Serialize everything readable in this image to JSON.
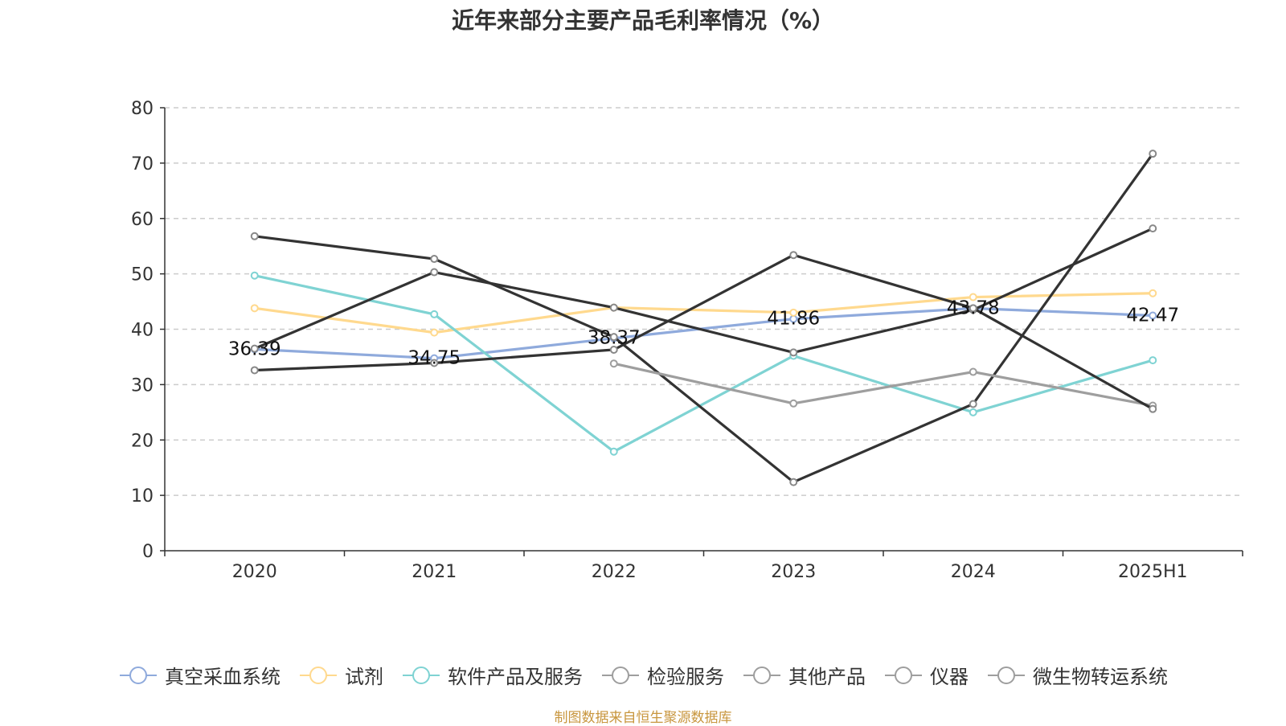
{
  "chart_data": {
    "type": "line",
    "title": "近年来部分主要产品毛利率情况（%）",
    "xlabel": "",
    "ylabel": "",
    "categories": [
      "2020",
      "2021",
      "2022",
      "2023",
      "2024",
      "2025H1"
    ],
    "ylim": [
      0,
      80
    ],
    "yticks": [
      0,
      10,
      20,
      30,
      40,
      50,
      60,
      70,
      80
    ],
    "grid": true,
    "legend_position": "bottom",
    "series": [
      {
        "name": "真空采血系统",
        "color": "#8faadc",
        "values": [
          36.39,
          34.75,
          38.37,
          41.86,
          43.78,
          42.47
        ],
        "labels": [
          "36.39",
          "34.75",
          "38.37",
          "41.86",
          "43.78",
          "42.47"
        ]
      },
      {
        "name": "试剂",
        "color": "#ffd98e",
        "values": [
          43.8,
          39.4,
          43.9,
          43.0,
          45.8,
          46.5
        ]
      },
      {
        "name": "软件产品及服务",
        "color": "#7fd3d3",
        "values": [
          49.7,
          42.7,
          17.9,
          35.2,
          25.0,
          34.4
        ]
      },
      {
        "name": "检验服务",
        "color": "#333333",
        "values": [
          56.8,
          52.7,
          38.6,
          12.4,
          26.5,
          71.7
        ]
      },
      {
        "name": "其他产品",
        "color": "#333333",
        "values": [
          36.5,
          50.3,
          43.9,
          35.8,
          43.5,
          58.2
        ]
      },
      {
        "name": "仪器",
        "color": "#9e9e9e",
        "values": [
          null,
          null,
          33.8,
          26.6,
          32.3,
          26.2
        ]
      },
      {
        "name": "微生物转运系统",
        "color": "#333333",
        "values": [
          32.6,
          33.9,
          36.3,
          53.4,
          43.8,
          25.6
        ]
      }
    ]
  },
  "legend": {
    "marker_color": "#9e9e9e"
  },
  "source_note": "制图数据来自恒生聚源数据库"
}
